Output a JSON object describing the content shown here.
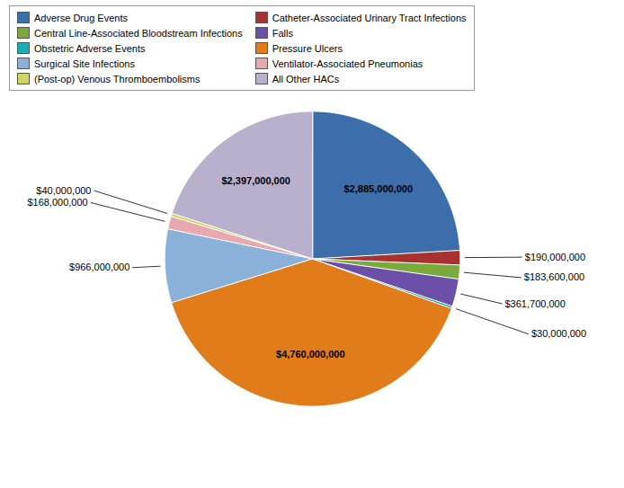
{
  "chart_data": {
    "type": "pie",
    "categories": [
      "Adverse Drug Events",
      "Catheter-Associated Urinary Tract Infections",
      "Central Line-Associated Bloodstream Infections",
      "Falls",
      "Obstetric Adverse Events",
      "Pressure Ulcers",
      "Surgical Site Infections",
      "Ventilator-Associated Pneumonias",
      "(Post-op) Venous Thromboembolisms",
      "All Other HACs"
    ],
    "values": [
      2885000000,
      190000000,
      183600000,
      361700000,
      30000000,
      4760000000,
      966000000,
      168000000,
      40000000,
      2397000000
    ],
    "value_labels": [
      "$2,885,000,000",
      "$190,000,000",
      "$183,600,000",
      "$361,700,000",
      "$30,000,000",
      "$4,760,000,000",
      "$966,000,000",
      "$168,000,000",
      "$40,000,000",
      "$2,397,000,000"
    ],
    "colors": [
      "#3b6eaa",
      "#a83232",
      "#7aaa3c",
      "#6b4fa8",
      "#1aacb0",
      "#e07c1a",
      "#8ab2d8",
      "#e8a8b0",
      "#d0d464",
      "#b8b0cc"
    ],
    "data_labels": true,
    "legend": "top"
  }
}
